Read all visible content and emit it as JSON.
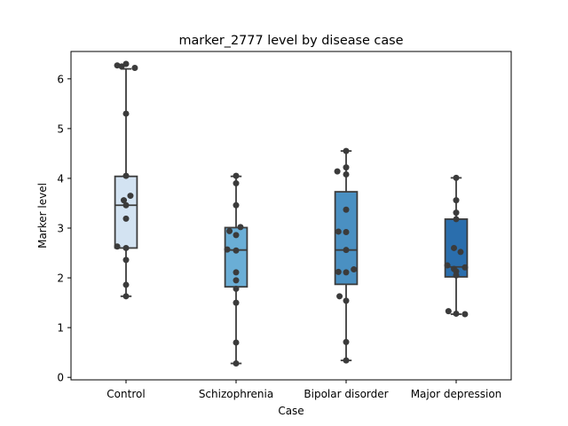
{
  "chart_data": {
    "type": "box",
    "title": "marker_2777 level by disease case",
    "xlabel": "Case",
    "ylabel": "Marker level",
    "ylim": [
      -0.05,
      6.55
    ],
    "yticks": [
      0,
      1,
      2,
      3,
      4,
      5,
      6
    ],
    "categories": [
      "Control",
      "Schizophrenia",
      "Bipolar disorder",
      "Major depression"
    ],
    "box_colors": [
      "#d3e3f2",
      "#6aaed6",
      "#4a90c2",
      "#2a6ead"
    ],
    "point_color": "#3b3b3b",
    "line_color": "#3d3d3d",
    "boxes": [
      {
        "whisker_low": 1.63,
        "q1": 2.6,
        "median": 3.46,
        "q3": 4.04,
        "whisker_high": 6.2
      },
      {
        "whisker_low": 0.28,
        "q1": 1.82,
        "median": 2.56,
        "q3": 3.01,
        "whisker_high": 4.04
      },
      {
        "whisker_low": 0.34,
        "q1": 1.87,
        "median": 2.56,
        "q3": 3.73,
        "whisker_high": 4.55
      },
      {
        "whisker_low": 1.27,
        "q1": 2.02,
        "median": 2.22,
        "q3": 3.18,
        "whisker_high": 4.01
      }
    ],
    "points": [
      [
        6.27,
        6.25,
        6.3,
        6.22,
        5.3,
        4.05,
        3.65,
        3.56,
        3.46,
        3.19,
        2.63,
        2.6,
        2.36,
        1.86,
        1.63
      ],
      [
        4.05,
        3.9,
        3.46,
        3.02,
        2.94,
        2.86,
        2.57,
        2.55,
        2.11,
        1.95,
        1.78,
        1.5,
        0.7,
        0.28
      ],
      [
        4.55,
        4.22,
        4.14,
        4.08,
        3.37,
        2.93,
        2.92,
        2.56,
        2.17,
        2.12,
        2.11,
        1.63,
        1.54,
        0.71,
        0.34
      ],
      [
        4.01,
        3.56,
        3.31,
        3.18,
        2.6,
        2.52,
        2.25,
        2.21,
        2.18,
        2.13,
        2.05,
        1.33,
        1.28,
        1.27
      ]
    ],
    "jitter": [
      [
        -0.08,
        -0.04,
        0.0,
        0.08,
        0.0,
        0.0,
        0.04,
        -0.02,
        0.0,
        0.0,
        -0.08,
        0.0,
        0.0,
        0.0,
        0.0
      ],
      [
        0.0,
        0.0,
        0.0,
        0.04,
        -0.06,
        0.0,
        -0.08,
        0.0,
        0.0,
        0.0,
        0.0,
        0.0,
        0.0,
        0.0
      ],
      [
        0.0,
        0.0,
        -0.08,
        0.0,
        0.0,
        -0.07,
        0.0,
        0.0,
        0.07,
        -0.07,
        0.0,
        -0.06,
        0.0,
        0.0,
        0.0
      ],
      [
        0.0,
        0.0,
        0.0,
        0.0,
        -0.02,
        0.04,
        -0.08,
        0.08,
        -0.02,
        0.0,
        0.0,
        -0.07,
        0.0,
        0.08
      ]
    ]
  }
}
